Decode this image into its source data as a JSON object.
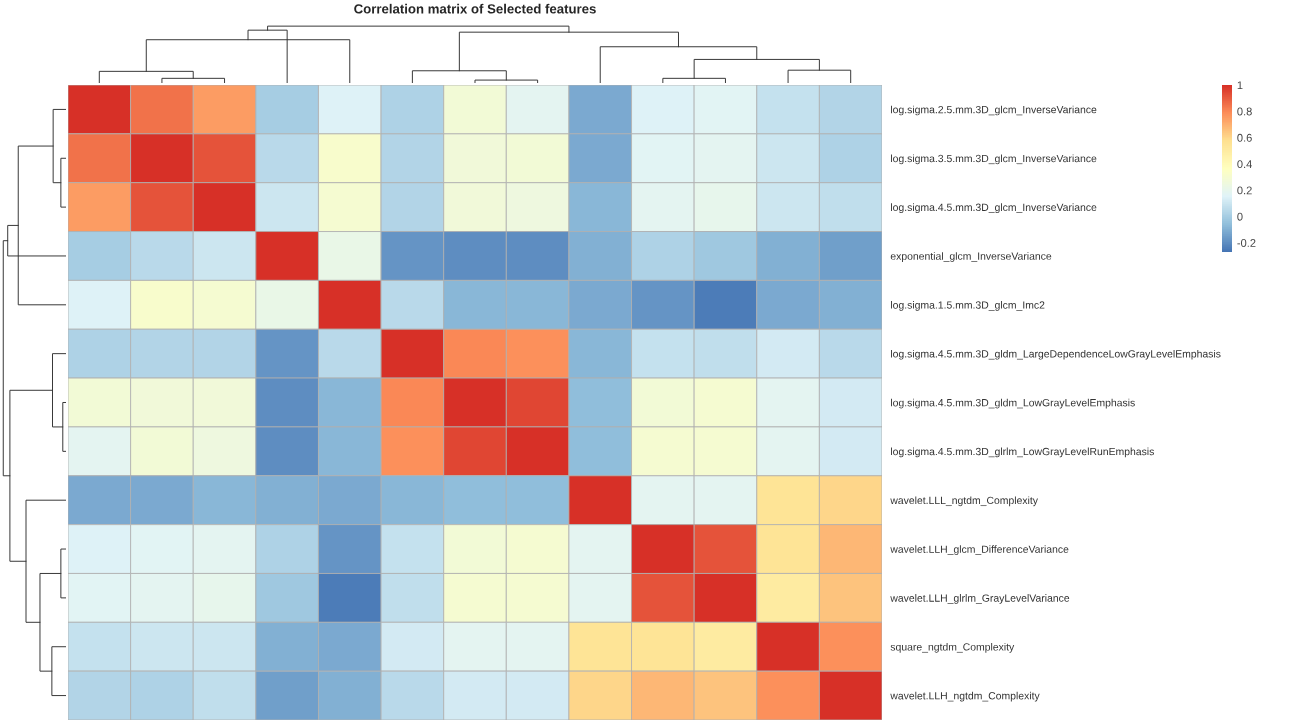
{
  "chart_data": {
    "type": "heatmap",
    "title": "Correlation matrix of Selected features",
    "categories": [
      null,
      null,
      null,
      null,
      null,
      null,
      null,
      null,
      null,
      null,
      null,
      null,
      null
    ],
    "y_categories": [
      "log.sigma.2.5.mm.3D_glcm_InverseVariance",
      "log.sigma.3.5.mm.3D_glcm_InverseVariance",
      "log.sigma.4.5.mm.3D_glcm_InverseVariance",
      "exponential_glcm_InverseVariance",
      "log.sigma.1.5.mm.3D_glcm_Imc2",
      "log.sigma.4.5.mm.3D_gldm_LargeDependenceLowGrayLevelEmphasis",
      "log.sigma.4.5.mm.3D_gldm_LowGrayLevelEmphasis",
      "log.sigma.4.5.mm.3D_glrlm_LowGrayLevelRunEmphasis",
      "wavelet.LLL_ngtdm_Complexity",
      "wavelet.LLH_glcm_DifferenceVariance",
      "wavelet.LLH_glrlm_GrayLevelVariance",
      "square_ngtdm_Complexity",
      "wavelet.LLH_ngtdm_Complexity"
    ],
    "cells": [
      [
        1,
        0.85,
        0.75,
        0.0,
        0.15,
        0.02,
        0.28,
        0.18,
        -0.12,
        0.15,
        0.17,
        0.08,
        0.03
      ],
      [
        0.85,
        1,
        0.92,
        0.05,
        0.32,
        0.03,
        0.27,
        0.28,
        -0.12,
        0.17,
        0.18,
        0.1,
        0.02
      ],
      [
        0.75,
        0.92,
        1,
        0.1,
        0.3,
        0.03,
        0.27,
        0.25,
        -0.08,
        0.18,
        0.2,
        0.1,
        0.07
      ],
      [
        0.0,
        0.05,
        0.1,
        1,
        0.22,
        -0.18,
        -0.2,
        -0.2,
        -0.1,
        0.02,
        -0.02,
        -0.1,
        -0.15
      ],
      [
        0.15,
        0.32,
        0.3,
        0.22,
        1,
        0.05,
        -0.08,
        -0.08,
        -0.12,
        -0.18,
        -0.25,
        -0.12,
        -0.1
      ],
      [
        0.02,
        0.03,
        0.03,
        -0.18,
        0.05,
        1,
        0.8,
        0.78,
        -0.08,
        0.08,
        0.07,
        0.12,
        0.05
      ],
      [
        0.28,
        0.27,
        0.27,
        -0.2,
        -0.08,
        0.8,
        1,
        0.95,
        -0.06,
        0.28,
        0.3,
        0.18,
        0.12
      ],
      [
        0.18,
        0.28,
        0.25,
        -0.2,
        -0.08,
        0.78,
        0.95,
        1,
        -0.06,
        0.3,
        0.3,
        0.18,
        0.12
      ],
      [
        -0.12,
        -0.12,
        -0.08,
        -0.1,
        -0.12,
        -0.08,
        -0.06,
        -0.06,
        1,
        0.18,
        0.18,
        0.55,
        0.6
      ],
      [
        0.15,
        0.17,
        0.18,
        0.02,
        -0.18,
        0.08,
        0.28,
        0.3,
        0.18,
        1,
        0.92,
        0.55,
        0.68
      ],
      [
        0.17,
        0.18,
        0.2,
        -0.02,
        -0.25,
        0.07,
        0.3,
        0.3,
        0.18,
        0.92,
        1,
        0.5,
        0.65
      ],
      [
        0.08,
        0.1,
        0.1,
        -0.1,
        -0.12,
        0.12,
        0.18,
        0.18,
        0.55,
        0.55,
        0.5,
        1,
        0.78
      ],
      [
        0.03,
        0.02,
        0.07,
        -0.15,
        -0.1,
        0.05,
        0.12,
        0.12,
        0.6,
        0.68,
        0.65,
        0.78,
        1
      ]
    ],
    "clim": [
      -0.27,
      1
    ],
    "cticks": [
      -0.2,
      0,
      0.2,
      0.4,
      0.6,
      0.8,
      1
    ]
  }
}
